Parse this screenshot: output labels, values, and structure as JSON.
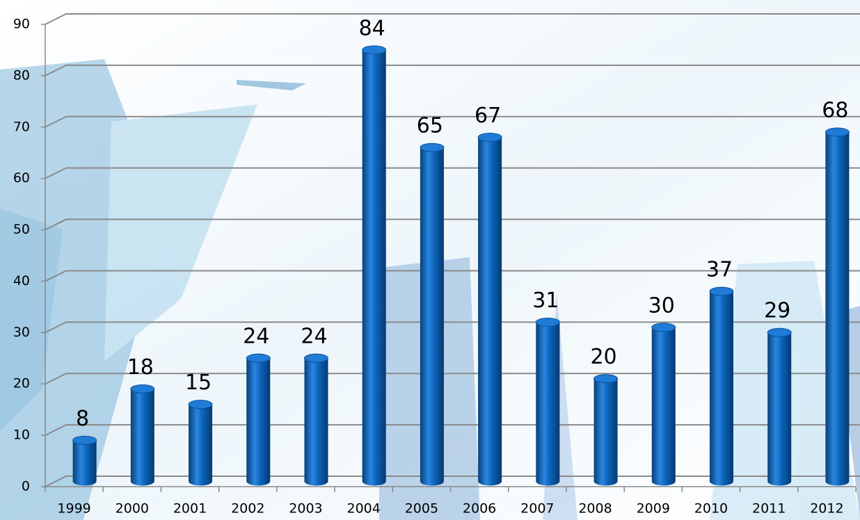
{
  "chart_data": {
    "type": "bar",
    "categories": [
      "1999",
      "2000",
      "2001",
      "2002",
      "2003",
      "2004",
      "2005",
      "2006",
      "2007",
      "2008",
      "2009",
      "2010",
      "2011",
      "2012"
    ],
    "values": [
      8,
      18,
      15,
      24,
      24,
      84,
      65,
      67,
      31,
      20,
      30,
      37,
      29,
      68
    ],
    "color": "#0b63b8",
    "ylim": [
      0,
      90
    ],
    "yticks": [
      0,
      10,
      20,
      30,
      40,
      50,
      60,
      70,
      80,
      90
    ],
    "grid": true
  }
}
